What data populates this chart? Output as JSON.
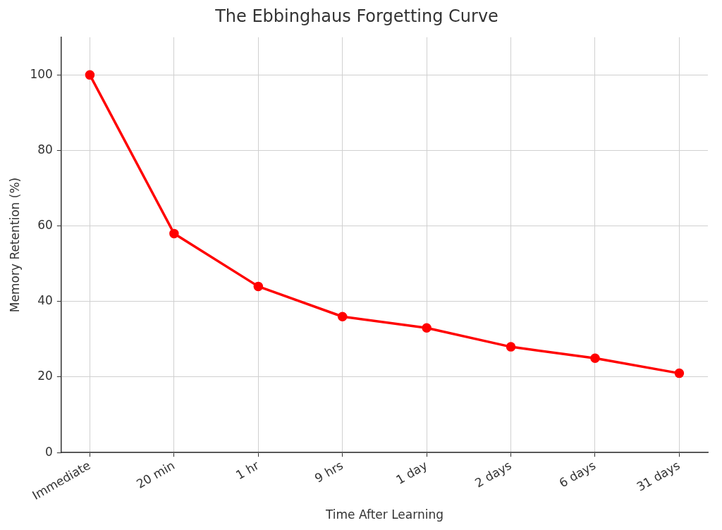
{
  "chart_data": {
    "type": "line",
    "title": "The Ebbinghaus Forgetting Curve",
    "xlabel": "Time After Learning",
    "ylabel": "Memory Retention (%)",
    "categories": [
      "Immediate",
      "20 min",
      "1 hr",
      "9 hrs",
      "1 day",
      "2 days",
      "6 days",
      "31 days"
    ],
    "series": [
      {
        "color": "#ff0000",
        "values": [
          100,
          58,
          44,
          36,
          33,
          28,
          25,
          21
        ]
      }
    ],
    "ylim": [
      0,
      110
    ],
    "yticks": [
      0,
      20,
      40,
      60,
      80,
      100
    ],
    "grid": true,
    "marker": "circle",
    "line_style": "solid",
    "legend": false
  }
}
